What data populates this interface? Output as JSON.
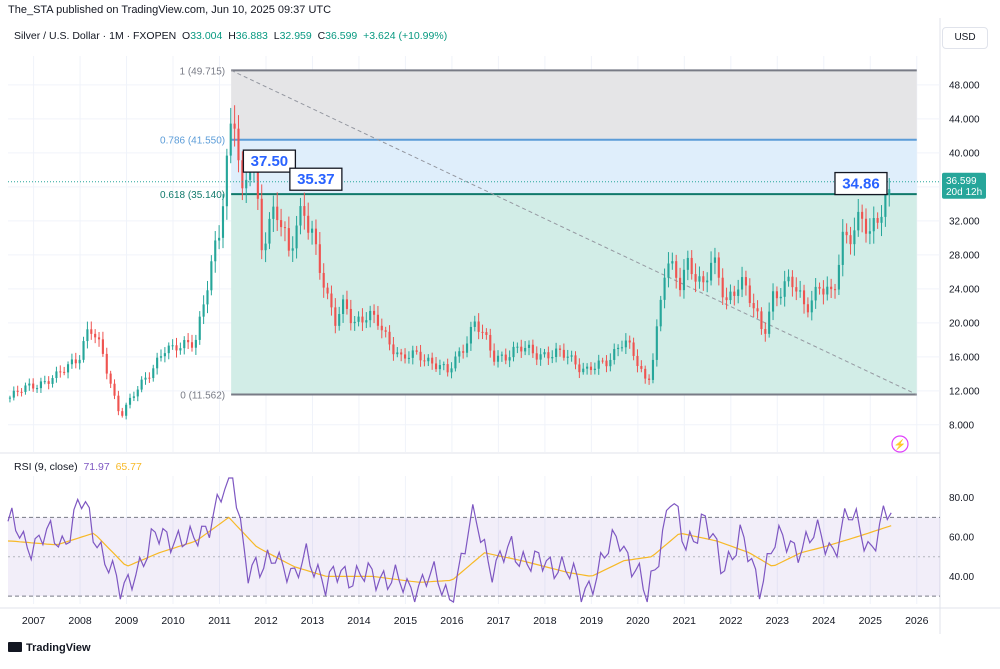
{
  "header": {
    "publisher": "The_STA published on TradingView.com, Jun 10, 2025 09:37 UTC"
  },
  "symbol": {
    "name": "Silver / U.S. Dollar · 1M · FXOPEN",
    "o_label": "O",
    "o": "33.004",
    "h_label": "H",
    "h": "36.883",
    "l_label": "L",
    "l": "32.959",
    "c_label": "C",
    "c": "36.599",
    "change": "+3.624 (+10.99%)"
  },
  "currency_button": "USD",
  "price_badge": {
    "price": "36.599",
    "countdown": "20d 12h"
  },
  "fib_labels": {
    "f1": "1 (49.715)",
    "f786": "0.786 (41.550)",
    "f618": "0.618 (35.140)",
    "f0": "0 (11.562)"
  },
  "annotations": [
    "37.50",
    "35.37",
    "34.86"
  ],
  "rsi_legend": {
    "label": "RSI (9, close)",
    "rsi": "71.97",
    "ma": "65.77"
  },
  "footer": "TradingView",
  "colors": {
    "up": "#26a69a",
    "down": "#ef5350",
    "fib_top_fill": "#e5e5e7",
    "fib_mid_fill": "#dfeefb",
    "fib_low_fill": "#d2ede7",
    "fib_786": "#5b9cd8",
    "fib_618": "#10796b",
    "rsi": "#7e57c2",
    "rsi_ma": "#f7b927"
  },
  "chart_data": [
    {
      "type": "candlestick",
      "title": "Silver / U.S. Dollar · 1M · FXOPEN",
      "x_ticks": [
        "2007",
        "2008",
        "2009",
        "2010",
        "2011",
        "2012",
        "2013",
        "2014",
        "2015",
        "2016",
        "2017",
        "2018",
        "2019",
        "2020",
        "2021",
        "2022",
        "2023",
        "2024",
        "2025",
        "2026"
      ],
      "y_ticks": [
        "48.000",
        "44.000",
        "40.000",
        "36.000",
        "32.000",
        "28.000",
        "24.000",
        "20.000",
        "16.000",
        "12.000",
        "8.000"
      ],
      "y_range": [
        4.8,
        51.4
      ],
      "x_range": [
        2006.45,
        2026.5
      ],
      "anchors": [
        [
          2006.5,
          11.2
        ],
        [
          2007.0,
          12.8
        ],
        [
          2007.5,
          13.5
        ],
        [
          2008.0,
          16.5
        ],
        [
          2008.2,
          19.5
        ],
        [
          2008.5,
          16.0
        ],
        [
          2008.8,
          10.2
        ],
        [
          2008.9,
          9.4
        ],
        [
          2009.3,
          12.5
        ],
        [
          2009.8,
          17.0
        ],
        [
          2010.0,
          16.5
        ],
        [
          2010.5,
          18.5
        ],
        [
          2010.9,
          28.0
        ],
        [
          2011.0,
          30.5
        ],
        [
          2011.3,
          47.0
        ],
        [
          2011.5,
          34.0
        ],
        [
          2011.7,
          40.0
        ],
        [
          2011.9,
          29.0
        ],
        [
          2012.2,
          34.5
        ],
        [
          2012.5,
          27.5
        ],
        [
          2012.8,
          34.0
        ],
        [
          2013.0,
          31.0
        ],
        [
          2013.3,
          22.5
        ],
        [
          2013.5,
          20.0
        ],
        [
          2013.7,
          23.0
        ],
        [
          2013.9,
          20.0
        ],
        [
          2014.4,
          20.5
        ],
        [
          2014.9,
          15.5
        ],
        [
          2015.3,
          16.5
        ],
        [
          2015.9,
          14.0
        ],
        [
          2016.5,
          20.0
        ],
        [
          2016.9,
          16.0
        ],
        [
          2017.5,
          16.8
        ],
        [
          2018.5,
          16.0
        ],
        [
          2018.9,
          14.5
        ],
        [
          2019.3,
          15.0
        ],
        [
          2019.7,
          18.5
        ],
        [
          2020.2,
          12.5
        ],
        [
          2020.35,
          17.0
        ],
        [
          2020.6,
          27.5
        ],
        [
          2020.9,
          24.0
        ],
        [
          2021.1,
          27.5
        ],
        [
          2021.4,
          24.5
        ],
        [
          2021.6,
          27.0
        ],
        [
          2021.9,
          22.5
        ],
        [
          2022.2,
          25.5
        ],
        [
          2022.7,
          18.5
        ],
        [
          2022.9,
          23.5
        ],
        [
          2023.3,
          24.5
        ],
        [
          2023.6,
          22.0
        ],
        [
          2023.9,
          24.5
        ],
        [
          2024.2,
          22.5
        ],
        [
          2024.4,
          30.0
        ],
        [
          2024.8,
          32.5
        ],
        [
          2025.0,
          29.5
        ],
        [
          2025.2,
          33.0
        ],
        [
          2025.45,
          36.599
        ]
      ],
      "fib_retracement": {
        "high": 49.715,
        "low": 11.562,
        "levels": [
          {
            "ratio": 1,
            "price": 49.715
          },
          {
            "ratio": 0.786,
            "price": 41.55
          },
          {
            "ratio": 0.618,
            "price": 35.14
          },
          {
            "ratio": 0,
            "price": 11.562
          }
        ],
        "start_x": 2011.25,
        "end_x": 2026.0
      },
      "trendline": [
        [
          2011.25,
          49.715
        ],
        [
          2026.0,
          11.562
        ]
      ],
      "highlights": [
        {
          "label": "37.50",
          "x": 2011.6,
          "y": 37.5
        },
        {
          "label": "35.37",
          "x": 2012.6,
          "y": 35.37
        },
        {
          "label": "34.86",
          "x": 2024.8,
          "y": 34.86
        }
      ],
      "last_price": 36.599
    },
    {
      "type": "line",
      "title": "RSI (9, close)",
      "y_ticks": [
        "80.00",
        "60.00",
        "40.00"
      ],
      "y_range": [
        26,
        91
      ],
      "bands": [
        30,
        70
      ],
      "series": [
        {
          "name": "RSI",
          "anchors": [
            [
              2006.5,
              68
            ],
            [
              2006.8,
              55
            ],
            [
              2007.2,
              62
            ],
            [
              2007.6,
              55
            ],
            [
              2008.0,
              80
            ],
            [
              2008.3,
              60
            ],
            [
              2008.6,
              50
            ],
            [
              2008.9,
              28
            ],
            [
              2009.2,
              45
            ],
            [
              2009.6,
              58
            ],
            [
              2010.0,
              62
            ],
            [
              2010.4,
              55
            ],
            [
              2010.8,
              70
            ],
            [
              2011.1,
              82
            ],
            [
              2011.3,
              92
            ],
            [
              2011.6,
              45
            ],
            [
              2011.9,
              40
            ],
            [
              2012.2,
              55
            ],
            [
              2012.6,
              35
            ],
            [
              2012.9,
              55
            ],
            [
              2013.3,
              32
            ],
            [
              2013.6,
              45
            ],
            [
              2014.0,
              38
            ],
            [
              2014.5,
              42
            ],
            [
              2015.0,
              33
            ],
            [
              2015.5,
              40
            ],
            [
              2016.0,
              30
            ],
            [
              2016.5,
              72
            ],
            [
              2016.9,
              42
            ],
            [
              2017.3,
              55
            ],
            [
              2017.8,
              45
            ],
            [
              2018.3,
              48
            ],
            [
              2018.8,
              32
            ],
            [
              2019.2,
              45
            ],
            [
              2019.6,
              62
            ],
            [
              2020.2,
              28
            ],
            [
              2020.5,
              60
            ],
            [
              2020.7,
              80
            ],
            [
              2021.0,
              55
            ],
            [
              2021.4,
              70
            ],
            [
              2021.8,
              45
            ],
            [
              2022.2,
              60
            ],
            [
              2022.6,
              35
            ],
            [
              2022.9,
              58
            ],
            [
              2023.3,
              55
            ],
            [
              2023.8,
              60
            ],
            [
              2024.2,
              55
            ],
            [
              2024.5,
              70
            ],
            [
              2024.8,
              64
            ],
            [
              2025.0,
              55
            ],
            [
              2025.3,
              68
            ],
            [
              2025.45,
              71.97
            ]
          ]
        },
        {
          "name": "MA",
          "anchors": [
            [
              2006.5,
              58
            ],
            [
              2007.5,
              56
            ],
            [
              2008.3,
              62
            ],
            [
              2009.0,
              45
            ],
            [
              2009.7,
              52
            ],
            [
              2010.5,
              58
            ],
            [
              2011.2,
              70
            ],
            [
              2011.8,
              55
            ],
            [
              2012.6,
              45
            ],
            [
              2013.3,
              40
            ],
            [
              2014.3,
              40
            ],
            [
              2015.3,
              37
            ],
            [
              2016.0,
              38
            ],
            [
              2016.7,
              52
            ],
            [
              2017.5,
              48
            ],
            [
              2018.5,
              42
            ],
            [
              2019.0,
              40
            ],
            [
              2019.7,
              48
            ],
            [
              2020.3,
              50
            ],
            [
              2020.9,
              62
            ],
            [
              2021.7,
              58
            ],
            [
              2022.4,
              52
            ],
            [
              2022.9,
              45
            ],
            [
              2023.5,
              52
            ],
            [
              2024.0,
              55
            ],
            [
              2024.7,
              60
            ],
            [
              2025.45,
              65.77
            ]
          ]
        }
      ]
    }
  ]
}
